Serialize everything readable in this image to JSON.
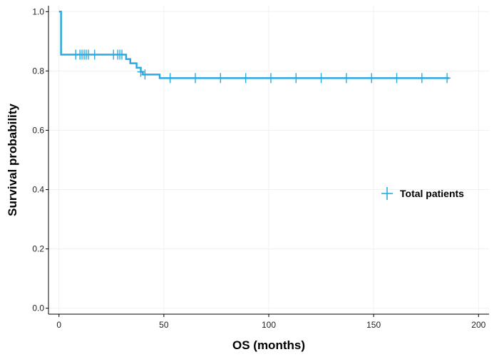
{
  "chart_data": {
    "type": "line",
    "subtype": "kaplan-meier",
    "title": "",
    "xlabel": "OS (months)",
    "ylabel": "Survival probability",
    "xlim": [
      -5,
      205
    ],
    "ylim": [
      -0.02,
      1.02
    ],
    "x_ticks": [
      0,
      50,
      100,
      150,
      200
    ],
    "y_ticks": [
      0.0,
      0.2,
      0.4,
      0.6,
      0.8,
      1.0
    ],
    "x_tick_labels": [
      "0",
      "50",
      "100",
      "150",
      "200"
    ],
    "y_tick_labels": [
      "0.0",
      "0.2",
      "0.4",
      "0.6",
      "0.8",
      "1.0"
    ],
    "grid": false,
    "legend_position": "right",
    "series": [
      {
        "name": "Total patients",
        "color": "#29abe2",
        "steps": [
          [
            0,
            1.0
          ],
          [
            1,
            0.855
          ],
          [
            32,
            0.84
          ],
          [
            34,
            0.826
          ],
          [
            37,
            0.811
          ],
          [
            39,
            0.797
          ],
          [
            40,
            0.788
          ],
          [
            48,
            0.776
          ],
          [
            186,
            0.776
          ]
        ],
        "censored": [
          [
            8,
            0.855
          ],
          [
            10,
            0.855
          ],
          [
            11,
            0.855
          ],
          [
            12,
            0.855
          ],
          [
            13,
            0.855
          ],
          [
            14,
            0.855
          ],
          [
            17,
            0.855
          ],
          [
            26,
            0.855
          ],
          [
            28,
            0.855
          ],
          [
            29,
            0.855
          ],
          [
            30,
            0.855
          ],
          [
            39,
            0.797
          ],
          [
            41,
            0.788
          ],
          [
            53,
            0.776
          ],
          [
            65,
            0.776
          ],
          [
            77,
            0.776
          ],
          [
            89,
            0.776
          ],
          [
            101,
            0.776
          ],
          [
            113,
            0.776
          ],
          [
            125,
            0.776
          ],
          [
            137,
            0.776
          ],
          [
            149,
            0.776
          ],
          [
            161,
            0.776
          ],
          [
            173,
            0.776
          ],
          [
            185,
            0.776
          ]
        ]
      }
    ]
  }
}
